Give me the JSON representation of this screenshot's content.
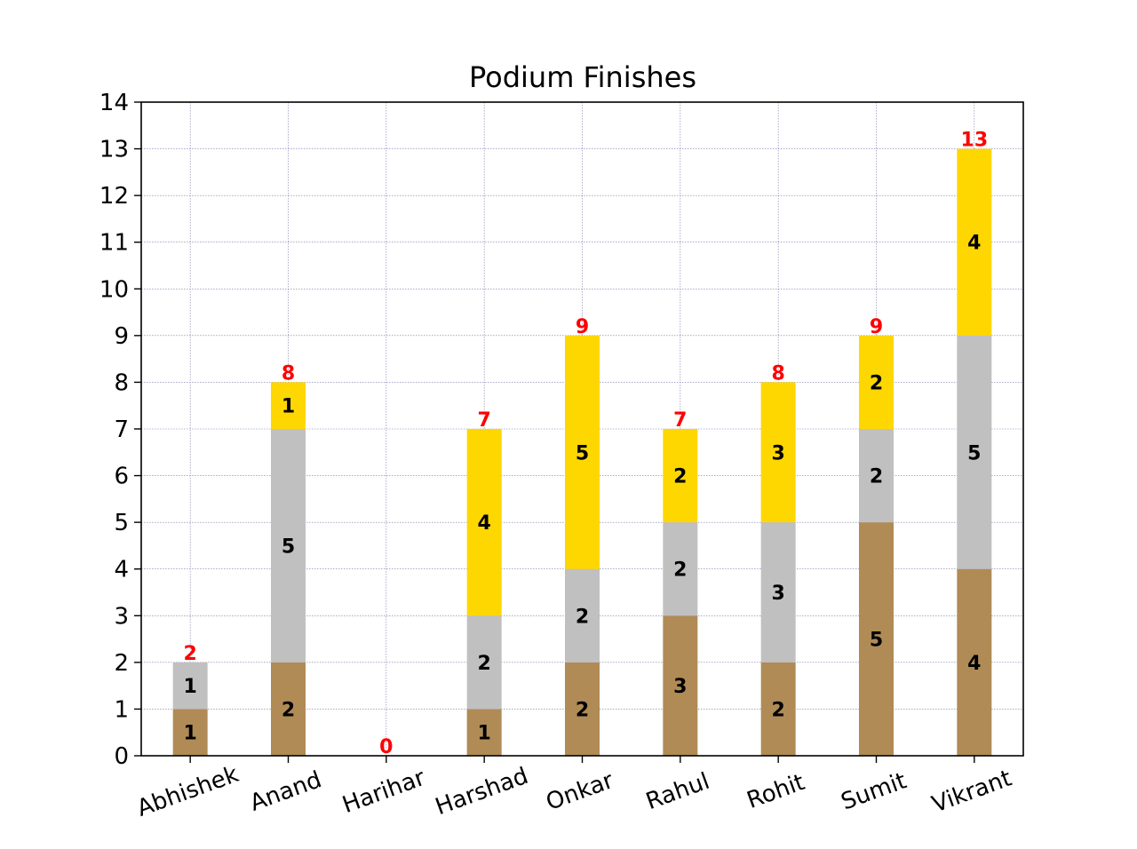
{
  "chart_data": {
    "type": "bar",
    "stacked": true,
    "title": "Podium Finishes",
    "xlabel": "",
    "ylabel": "",
    "categories": [
      "Abhishek",
      "Anand",
      "Harihar",
      "Harshad",
      "Onkar",
      "Rahul",
      "Rohit",
      "Sumit",
      "Vikrant"
    ],
    "series": [
      {
        "color": "#b08b55",
        "values": [
          1,
          2,
          0,
          1,
          2,
          3,
          2,
          5,
          4
        ]
      },
      {
        "color": "#c0c0c0",
        "values": [
          1,
          5,
          0,
          2,
          2,
          2,
          3,
          2,
          5
        ]
      },
      {
        "color": "#ffd700",
        "values": [
          0,
          1,
          0,
          4,
          5,
          2,
          3,
          2,
          4
        ]
      }
    ],
    "totals": [
      2,
      8,
      0,
      7,
      9,
      7,
      8,
      9,
      13
    ],
    "total_label_color": "#ff0000",
    "ylim": [
      0,
      14
    ],
    "yticks": [
      0,
      1,
      2,
      3,
      4,
      5,
      6,
      7,
      8,
      9,
      10,
      11,
      12,
      13,
      14
    ],
    "xtick_rotation": 20,
    "grid": true,
    "grid_style": "dotted",
    "grid_color": "#7777aa",
    "legend": "none"
  }
}
